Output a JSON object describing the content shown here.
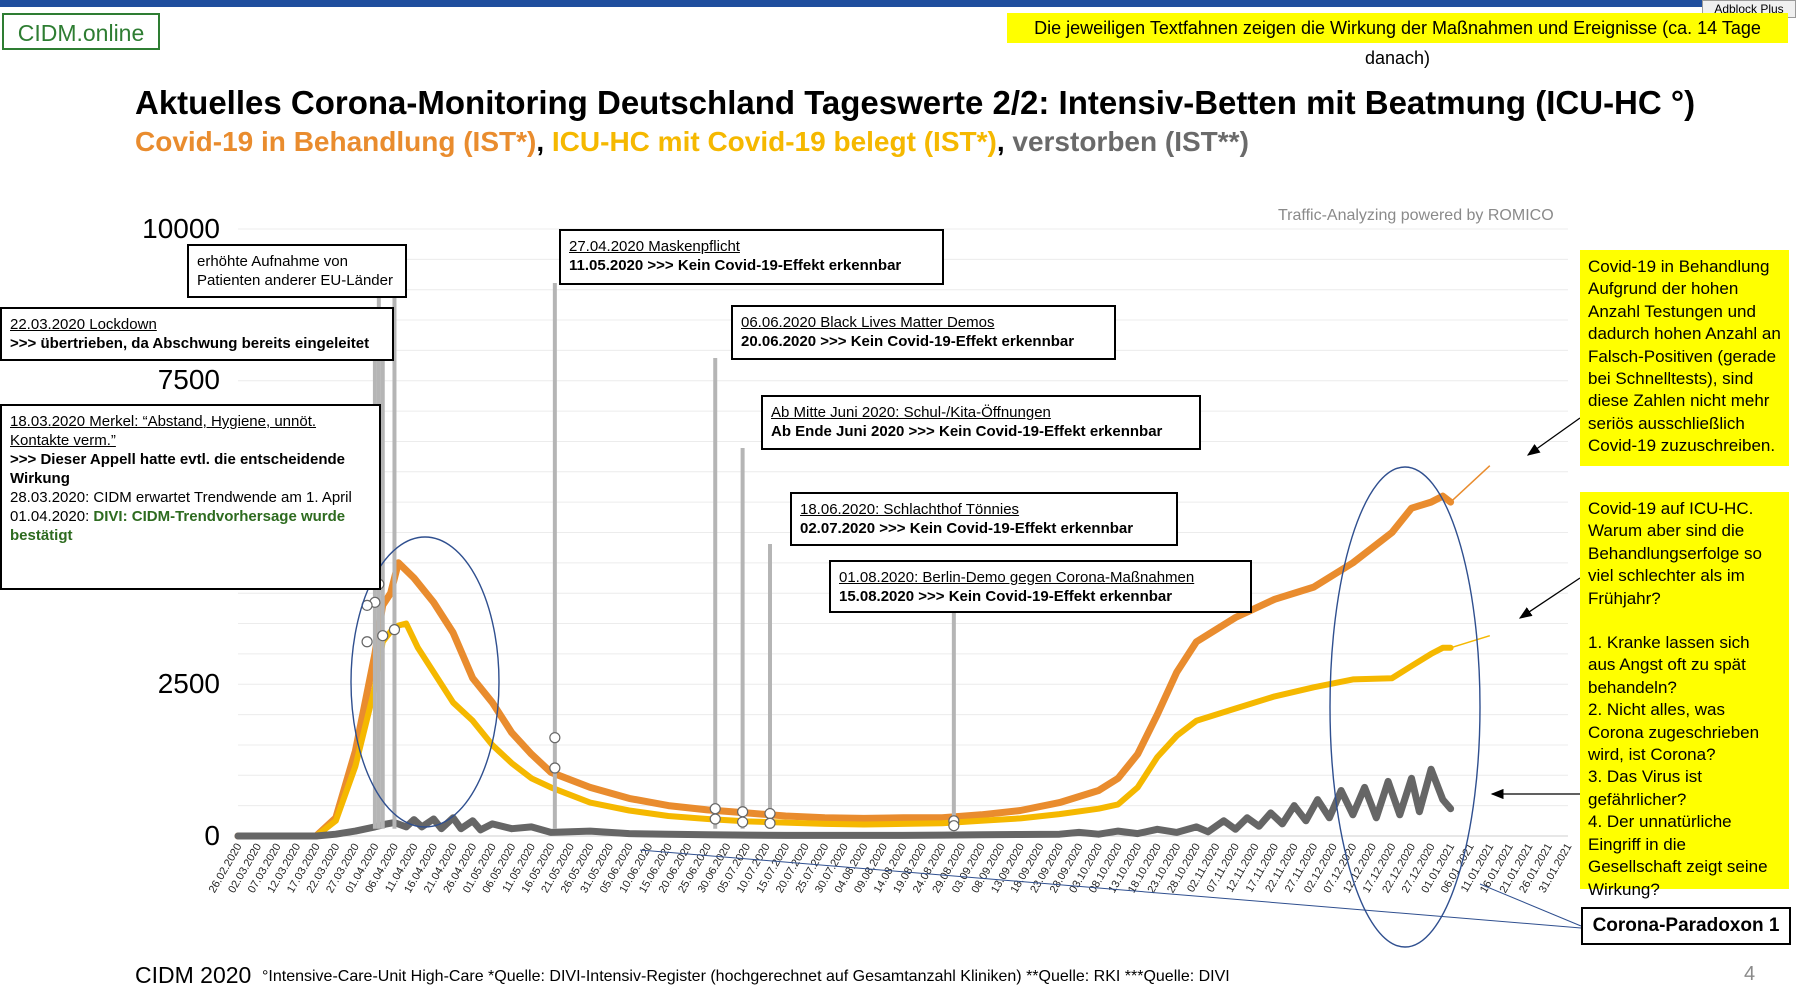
{
  "header": {
    "logo": "CIDM.online",
    "banner": "Die jeweiligen Textfahnen zeigen die Wirkung der Maßnahmen und Ereignisse (ca. 14 Tage danach)",
    "adblock": "Adblock Plus",
    "title": "Aktuelles Corona-Monitoring Deutschland Tageswerte 2/2: Intensiv-Betten mit Beatmung (ICU-HC °)",
    "subtitle_parts": [
      {
        "text": "Covid-19 in Behandlung (IST*)",
        "color": "#e98c2e"
      },
      {
        "text": ", ",
        "color": "#000000"
      },
      {
        "text": "ICU-HC mit Covid-19 belegt (IST*)",
        "color": "#f5b800"
      },
      {
        "text": ", ",
        "color": "#000000"
      },
      {
        "text": "verstorben (IST**)",
        "color": "#6a6a6a"
      }
    ]
  },
  "powered_by": "Traffic-Analyzing powered by ROMICO",
  "callouts": [
    {
      "id": "eu",
      "lines": [
        {
          "t": "erhöhte Aufnahme von",
          "s": "n"
        },
        {
          "t": "Patienten anderer EU-Länder",
          "s": "n"
        }
      ]
    },
    {
      "id": "lockdown",
      "lines": [
        {
          "t": "22.03.2020 Lockdown",
          "s": "u"
        },
        {
          "t": ">>> übertrieben, da Abschwung bereits eingeleitet",
          "s": "b"
        }
      ]
    },
    {
      "id": "merkel",
      "lines": [
        {
          "t": "18.03.2020 Merkel: “Abstand, Hygiene, unnöt. Kontakte verm.”",
          "s": "u"
        },
        {
          "t": ">>> Dieser Appell hatte evtl. die entscheidende Wirkung",
          "s": "b"
        },
        {
          "t": "28.03.2020: CIDM erwartet Trendwende am 1. April",
          "s": "n"
        },
        {
          "t": "01.04.2020: ",
          "s": "n",
          "g": "DIVI: CIDM-Trendvorhersage wurde bestätigt"
        }
      ]
    },
    {
      "id": "masken",
      "lines": [
        {
          "t": "27.04.2020 Maskenpflicht",
          "s": "u"
        },
        {
          "t": "11.05.2020 >>> Kein Covid-19-Effekt erkennbar",
          "s": "b"
        }
      ]
    },
    {
      "id": "blm",
      "lines": [
        {
          "t": "06.06.2020 Black Lives Matter Demos",
          "s": "u"
        },
        {
          "t": "20.06.2020 >>> Kein Covid-19-Effekt erkennbar",
          "s": "b"
        }
      ]
    },
    {
      "id": "schule",
      "lines": [
        {
          "t": "Ab Mitte Juni 2020: Schul-/Kita-Öffnungen",
          "s": "u"
        },
        {
          "t": "Ab Ende Juni 2020 >>> Kein Covid-19-Effekt erkennbar",
          "s": "b"
        }
      ]
    },
    {
      "id": "toennies",
      "lines": [
        {
          "t": "18.06.2020: Schlachthof Tönnies",
          "s": "u"
        },
        {
          "t": "02.07.2020 >>> Kein Covid-19-Effekt erkennbar",
          "s": "b"
        }
      ]
    },
    {
      "id": "berlin",
      "lines": [
        {
          "t": "01.08.2020: Berlin-Demo gegen Corona-Maßnahmen",
          "s": "u"
        },
        {
          "t": "15.08.2020 >>> Kein Covid-19-Effekt erkennbar",
          "s": "b"
        }
      ]
    }
  ],
  "side_notes": [
    {
      "id": "behandlung",
      "text": "Covid-19 in Behandlung Aufgrund der hohen Anzahl Testungen und dadurch hohen Anzahl an Falsch-Positiven (gerade bei Schnelltests), sind diese Zahlen nicht mehr seriös ausschließlich Covid-19 zuzuschreiben."
    },
    {
      "id": "icu",
      "paragraphs": [
        "Covid-19 auf ICU-HC. Warum aber sind die Behandlungserfolge so viel schlechter als im Frühjahr?",
        "1. Kranke lassen sich aus Angst oft zu spät behandeln?",
        "2. Nicht alles, was Corona zugeschrieben wird, ist Corona?",
        "3. Das Virus ist gefährlicher?",
        "4. Der unnatürliche Eingriff in die Gesellschaft zeigt seine Wirkung?"
      ]
    }
  ],
  "paradox_label": "Corona-Paradoxon 1",
  "footer": {
    "left": "CIDM 2020",
    "notes": "°Intensive-Care-Unit High-Care  *Quelle: DIVI-Intensiv-Register (hochgerechnet auf Gesamtanzahl Kliniken)  **Quelle: RKI  ***Quelle: DIVI",
    "page": "4"
  },
  "chart_data": {
    "type": "line",
    "title": "Aktuelles Corona-Monitoring Deutschland Tageswerte 2/2: Intensiv-Betten mit Beatmung (ICU-HC °)",
    "ylim": [
      0,
      10000
    ],
    "yticks": [
      0,
      2500,
      7500,
      10000
    ],
    "grid": true,
    "x_tick_labels": [
      "26.02.2020",
      "02.03.2020",
      "07.03.2020",
      "12.03.2020",
      "17.03.2020",
      "22.03.2020",
      "27.03.2020",
      "01.04.2020",
      "06.04.2020",
      "11.04.2020",
      "16.04.2020",
      "21.04.2020",
      "26.04.2020",
      "01.05.2020",
      "06.05.2020",
      "11.05.2020",
      "16.05.2020",
      "21.05.2020",
      "26.05.2020",
      "31.05.2020",
      "05.06.2020",
      "10.06.2020",
      "15.06.2020",
      "20.06.2020",
      "25.06.2020",
      "30.06.2020",
      "05.07.2020",
      "10.07.2020",
      "15.07.2020",
      "20.07.2020",
      "25.07.2020",
      "30.07.2020",
      "04.08.2020",
      "09.08.2020",
      "14.08.2020",
      "19.08.2020",
      "24.08.2020",
      "29.08.2020",
      "03.09.2020",
      "08.09.2020",
      "13.09.2020",
      "18.09.2020",
      "23.09.2020",
      "28.09.2020",
      "03.10.2020",
      "08.10.2020",
      "13.10.2020",
      "18.10.2020",
      "23.10.2020",
      "28.10.2020",
      "02.11.2020",
      "07.11.2020",
      "12.11.2020",
      "17.11.2020",
      "22.11.2020",
      "27.11.2020",
      "02.12.2020",
      "07.12.2020",
      "12.12.2020",
      "17.12.2020",
      "22.12.2020",
      "27.12.2020",
      "01.01.2021",
      "06.01.2021",
      "11.01.2021",
      "16.01.2021",
      "21.01.2021",
      "26.01.2021",
      "31.01.2021"
    ],
    "series": [
      {
        "name": "Covid-19 in Behandlung (IST*)",
        "color": "#e98c2e",
        "points": [
          [
            0,
            0
          ],
          [
            20,
            0
          ],
          [
            25,
            300
          ],
          [
            30,
            1400
          ],
          [
            35,
            3000
          ],
          [
            37,
            3800
          ],
          [
            39,
            4000
          ],
          [
            41,
            4500
          ],
          [
            45,
            4250
          ],
          [
            50,
            3850
          ],
          [
            55,
            3350
          ],
          [
            60,
            2600
          ],
          [
            65,
            2200
          ],
          [
            70,
            1700
          ],
          [
            75,
            1350
          ],
          [
            80,
            1050
          ],
          [
            90,
            800
          ],
          [
            100,
            620
          ],
          [
            110,
            500
          ],
          [
            120,
            430
          ],
          [
            130,
            380
          ],
          [
            140,
            330
          ],
          [
            150,
            300
          ],
          [
            160,
            290
          ],
          [
            170,
            300
          ],
          [
            180,
            300
          ],
          [
            190,
            350
          ],
          [
            200,
            420
          ],
          [
            210,
            550
          ],
          [
            220,
            750
          ],
          [
            225,
            950
          ],
          [
            230,
            1350
          ],
          [
            235,
            2000
          ],
          [
            240,
            2700
          ],
          [
            245,
            3200
          ],
          [
            255,
            3600
          ],
          [
            265,
            3900
          ],
          [
            275,
            4100
          ],
          [
            285,
            4500
          ],
          [
            295,
            5000
          ],
          [
            300,
            5400
          ],
          [
            305,
            5500
          ],
          [
            308,
            5600
          ],
          [
            310,
            5500
          ]
        ],
        "trend": [
          [
            310,
            5500
          ],
          [
            320,
            6100
          ]
        ]
      },
      {
        "name": "ICU-HC mit Covid-19 belegt (IST*)",
        "color": "#f5b800",
        "points": [
          [
            0,
            0
          ],
          [
            20,
            0
          ],
          [
            25,
            250
          ],
          [
            30,
            1150
          ],
          [
            35,
            2450
          ],
          [
            37,
            3200
          ],
          [
            40,
            3450
          ],
          [
            43,
            3500
          ],
          [
            46,
            3100
          ],
          [
            50,
            2700
          ],
          [
            55,
            2200
          ],
          [
            60,
            1900
          ],
          [
            65,
            1500
          ],
          [
            70,
            1200
          ],
          [
            75,
            950
          ],
          [
            80,
            800
          ],
          [
            90,
            550
          ],
          [
            100,
            420
          ],
          [
            110,
            330
          ],
          [
            120,
            280
          ],
          [
            130,
            240
          ],
          [
            140,
            220
          ],
          [
            150,
            200
          ],
          [
            160,
            190
          ],
          [
            170,
            200
          ],
          [
            180,
            210
          ],
          [
            190,
            250
          ],
          [
            200,
            290
          ],
          [
            210,
            360
          ],
          [
            220,
            450
          ],
          [
            225,
            520
          ],
          [
            230,
            800
          ],
          [
            235,
            1300
          ],
          [
            240,
            1650
          ],
          [
            245,
            1900
          ],
          [
            255,
            2100
          ],
          [
            265,
            2300
          ],
          [
            275,
            2450
          ],
          [
            285,
            2580
          ],
          [
            295,
            2600
          ],
          [
            300,
            2800
          ],
          [
            305,
            3000
          ],
          [
            308,
            3100
          ],
          [
            310,
            3100
          ]
        ],
        "trend": [
          [
            310,
            3100
          ],
          [
            320,
            3300
          ]
        ]
      },
      {
        "name": "verstorben (IST**)",
        "color": "#666666",
        "points": [
          [
            0,
            0
          ],
          [
            20,
            0
          ],
          [
            25,
            30
          ],
          [
            30,
            80
          ],
          [
            35,
            150
          ],
          [
            38,
            200
          ],
          [
            40,
            220
          ],
          [
            43,
            150
          ],
          [
            45,
            270
          ],
          [
            47,
            150
          ],
          [
            50,
            280
          ],
          [
            52,
            120
          ],
          [
            55,
            300
          ],
          [
            57,
            120
          ],
          [
            60,
            250
          ],
          [
            62,
            100
          ],
          [
            65,
            200
          ],
          [
            70,
            120
          ],
          [
            75,
            150
          ],
          [
            80,
            60
          ],
          [
            90,
            80
          ],
          [
            100,
            40
          ],
          [
            110,
            30
          ],
          [
            120,
            20
          ],
          [
            130,
            15
          ],
          [
            140,
            10
          ],
          [
            150,
            10
          ],
          [
            160,
            10
          ],
          [
            170,
            10
          ],
          [
            180,
            15
          ],
          [
            190,
            20
          ],
          [
            200,
            25
          ],
          [
            210,
            30
          ],
          [
            215,
            60
          ],
          [
            220,
            30
          ],
          [
            225,
            80
          ],
          [
            230,
            40
          ],
          [
            235,
            110
          ],
          [
            240,
            60
          ],
          [
            245,
            150
          ],
          [
            248,
            70
          ],
          [
            252,
            250
          ],
          [
            255,
            110
          ],
          [
            258,
            300
          ],
          [
            261,
            160
          ],
          [
            264,
            380
          ],
          [
            267,
            200
          ],
          [
            270,
            500
          ],
          [
            273,
            250
          ],
          [
            276,
            600
          ],
          [
            279,
            300
          ],
          [
            282,
            750
          ],
          [
            285,
            350
          ],
          [
            288,
            800
          ],
          [
            291,
            300
          ],
          [
            294,
            900
          ],
          [
            297,
            350
          ],
          [
            300,
            950
          ],
          [
            302,
            400
          ],
          [
            305,
            1100
          ],
          [
            308,
            600
          ],
          [
            310,
            450
          ]
        ]
      }
    ],
    "markers": [
      {
        "callout": "eu",
        "x": 36,
        "y": 4150
      },
      {
        "callout": "eu",
        "x": 40,
        "y": 3400
      },
      {
        "callout": "lockdown",
        "x": 35,
        "y": 3850
      },
      {
        "callout": "lockdown",
        "x": 37,
        "y": 3300
      },
      {
        "callout": "merkel",
        "x": 33,
        "y": 3800
      },
      {
        "callout": "merkel",
        "x": 33,
        "y": 3200
      },
      {
        "callout": "masken",
        "x": 81,
        "y": 1620
      },
      {
        "callout": "masken",
        "x": 81,
        "y": 1120
      },
      {
        "callout": "blm",
        "x": 122,
        "y": 450
      },
      {
        "callout": "blm",
        "x": 122,
        "y": 280
      },
      {
        "callout": "schule",
        "x": 129,
        "y": 400
      },
      {
        "callout": "schule",
        "x": 129,
        "y": 230
      },
      {
        "callout": "toennies",
        "x": 136,
        "y": 370
      },
      {
        "callout": "toennies",
        "x": 136,
        "y": 210
      },
      {
        "callout": "berlin",
        "x": 183,
        "y": 250
      },
      {
        "callout": "berlin",
        "x": 183,
        "y": 170
      }
    ]
  }
}
